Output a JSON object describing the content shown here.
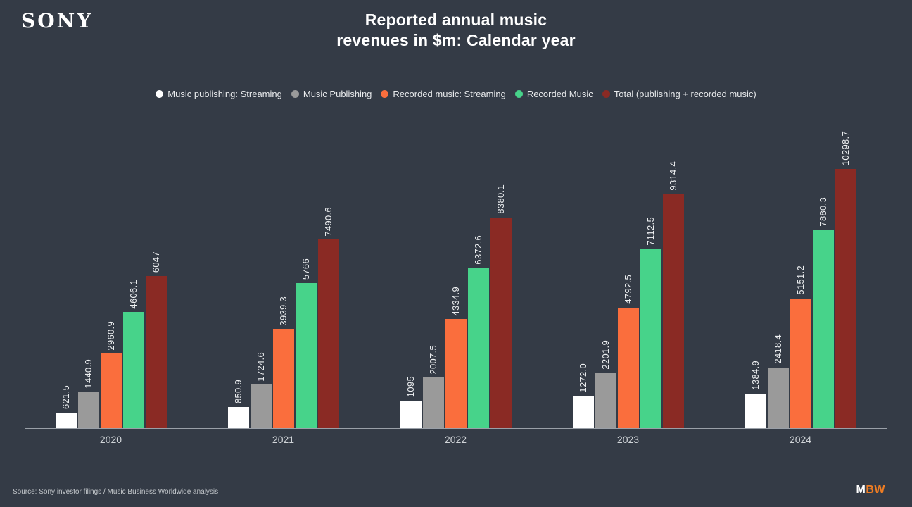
{
  "header": {
    "logo": "SONY",
    "title_line1": "Reported annual music",
    "title_line2": "revenues in $m: Calendar year"
  },
  "colors": {
    "background": "#343b46",
    "title_text": "#ffffff",
    "axis_line": "#9aa0a8",
    "tick_text": "#d0d4d8",
    "value_label_text": "#eef0f2",
    "legend_text": "#e8eaec",
    "mbw_orange": "#ef7d23"
  },
  "chart_data": {
    "type": "bar",
    "title": "Reported annual music revenues in $m: Calendar year",
    "xlabel": "",
    "ylabel": "",
    "ylim": [
      0,
      10500
    ],
    "grid": false,
    "legend_position": "top",
    "categories": [
      "2020",
      "2021",
      "2022",
      "2023",
      "2024"
    ],
    "series": [
      {
        "name": "Music publishing: Streaming",
        "color": "#ffffff",
        "values": [
          621.5,
          850.9,
          1095,
          1272.0,
          1384.9
        ],
        "value_labels": [
          "621.5",
          "850.9",
          "1095",
          "1272.0",
          "1384.9"
        ]
      },
      {
        "name": "Music Publishing",
        "color": "#9a9a9a",
        "values": [
          1440.9,
          1724.6,
          2007.5,
          2201.9,
          2418.4
        ],
        "value_labels": [
          "1440.9",
          "1724.6",
          "2007.5",
          "2201.9",
          "2418.4"
        ]
      },
      {
        "name": "Recorded music: Streaming",
        "color": "#fa6e3d",
        "values": [
          2960.9,
          3939.3,
          4334.9,
          4792.5,
          5151.2
        ],
        "value_labels": [
          "2960.9",
          "3939.3",
          "4334.9",
          "4792.5",
          "5151.2"
        ]
      },
      {
        "name": "Recorded Music",
        "color": "#47d38a",
        "values": [
          4606.1,
          5766,
          6372.6,
          7112.5,
          7880.3
        ],
        "value_labels": [
          "4606.1",
          "5766",
          "6372.6",
          "7112.5",
          "7880.3"
        ]
      },
      {
        "name": "Total (publishing + recorded music)",
        "color": "#8a2a24",
        "values": [
          6047,
          7490.6,
          8380.1,
          9314.4,
          10298.7
        ],
        "value_labels": [
          "6047",
          "7490.6",
          "8380.1",
          "9314.4",
          "10298.7"
        ]
      }
    ]
  },
  "footer": {
    "source": "Source: Sony investor filings / Music Business Worldwide analysis",
    "mbw_m": "M",
    "mbw_bw": "BW"
  }
}
